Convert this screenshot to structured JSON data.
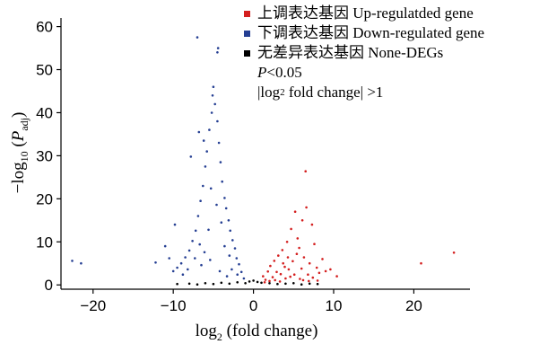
{
  "chart_data": {
    "type": "scatter",
    "title": "",
    "xlabel": {
      "base": "log",
      "sub": "2",
      "rest": " (fold change)"
    },
    "ylabel": {
      "pre": "−log",
      "sub": "10",
      "mid": " (",
      "italic": "P",
      "sub2": "adj",
      "post": ")"
    },
    "xlim": [
      -24,
      27
    ],
    "ylim": [
      -1,
      62
    ],
    "xticks": [
      -20,
      -10,
      0,
      10,
      20
    ],
    "yticks": [
      0,
      10,
      20,
      30,
      40,
      50,
      60
    ],
    "grid": false,
    "legend_position": "top-right",
    "series": [
      {
        "name": "上调表达基因 Up-regulatded gene",
        "color": "#d41f1f",
        "points": [
          [
            1.2,
            2.0
          ],
          [
            1.5,
            1.2
          ],
          [
            1.8,
            3.1
          ],
          [
            2.1,
            4.4
          ],
          [
            2.4,
            1.8
          ],
          [
            2.6,
            5.6
          ],
          [
            2.9,
            3.0
          ],
          [
            3.1,
            6.8
          ],
          [
            3.4,
            2.5
          ],
          [
            3.6,
            8.1
          ],
          [
            3.9,
            4.2
          ],
          [
            4.2,
            10.0
          ],
          [
            4.4,
            3.6
          ],
          [
            4.7,
            13.0
          ],
          [
            4.9,
            5.5
          ],
          [
            5.2,
            17.0
          ],
          [
            5.4,
            7.2
          ],
          [
            5.7,
            8.6
          ],
          [
            6.0,
            3.8
          ],
          [
            6.3,
            6.4
          ],
          [
            6.5,
            26.4
          ],
          [
            6.8,
            2.4
          ],
          [
            7.0,
            5.0
          ],
          [
            7.3,
            14.0
          ],
          [
            7.6,
            9.5
          ],
          [
            7.9,
            4.0
          ],
          [
            8.2,
            2.8
          ],
          [
            8.6,
            6.0
          ],
          [
            9.0,
            3.2
          ],
          [
            9.6,
            3.6
          ],
          [
            10.4,
            2.0
          ],
          [
            20.9,
            5.0
          ],
          [
            25.0,
            7.5
          ],
          [
            1.4,
            0.6
          ],
          [
            2.0,
            0.9
          ],
          [
            2.7,
            1.1
          ],
          [
            3.3,
            0.8
          ],
          [
            4.0,
            1.5
          ],
          [
            4.6,
            1.9
          ],
          [
            5.1,
            2.4
          ],
          [
            5.8,
            1.4
          ],
          [
            6.2,
            1.1
          ],
          [
            6.9,
            0.9
          ],
          [
            7.4,
            1.7
          ],
          [
            8.0,
            1.0
          ],
          [
            3.7,
            5.0
          ],
          [
            4.3,
            6.4
          ],
          [
            5.5,
            10.8
          ],
          [
            6.1,
            15.0
          ],
          [
            6.6,
            18.0
          ]
        ]
      },
      {
        "name": "下调表达基因 Down-regulated gene",
        "color": "#253f93",
        "points": [
          [
            -1.2,
            1.5
          ],
          [
            -1.5,
            3.0
          ],
          [
            -1.8,
            4.8
          ],
          [
            -2.1,
            6.2
          ],
          [
            -2.3,
            8.5
          ],
          [
            -2.6,
            10.4
          ],
          [
            -2.9,
            12.6
          ],
          [
            -3.1,
            15.0
          ],
          [
            -3.4,
            17.8
          ],
          [
            -3.6,
            20.2
          ],
          [
            -3.9,
            24.0
          ],
          [
            -4.1,
            28.5
          ],
          [
            -4.3,
            33.0
          ],
          [
            -4.5,
            38.0
          ],
          [
            -4.8,
            42.0
          ],
          [
            -5.0,
            46.0
          ],
          [
            -4.4,
            55.0
          ],
          [
            -4.5,
            54.0
          ],
          [
            -5.2,
            40.0
          ],
          [
            -5.5,
            36.0
          ],
          [
            -5.8,
            31.0
          ],
          [
            -6.0,
            27.5
          ],
          [
            -6.3,
            23.0
          ],
          [
            -6.6,
            19.5
          ],
          [
            -6.9,
            16.0
          ],
          [
            -7.2,
            12.6
          ],
          [
            -7.6,
            10.2
          ],
          [
            -8.0,
            8.0
          ],
          [
            -8.5,
            6.4
          ],
          [
            -9.0,
            5.0
          ],
          [
            -9.5,
            4.0
          ],
          [
            -10.0,
            3.2
          ],
          [
            -7.0,
            57.5
          ],
          [
            -5.1,
            44.0
          ],
          [
            -6.8,
            35.5
          ],
          [
            -7.8,
            29.8
          ],
          [
            -6.2,
            33.5
          ],
          [
            -9.8,
            14.0
          ],
          [
            -10.5,
            6.2
          ],
          [
            -11.0,
            9.0
          ],
          [
            -22.6,
            5.6
          ],
          [
            -21.5,
            5.0
          ],
          [
            -12.2,
            5.2
          ],
          [
            -3.0,
            6.8
          ],
          [
            -3.6,
            9.0
          ],
          [
            -4.0,
            14.5
          ],
          [
            -4.6,
            18.6
          ],
          [
            -5.3,
            22.4
          ],
          [
            -5.6,
            12.8
          ],
          [
            -6.1,
            7.6
          ],
          [
            -6.5,
            4.6
          ],
          [
            -2.0,
            2.4
          ],
          [
            -2.7,
            3.6
          ],
          [
            -3.3,
            2.0
          ],
          [
            -4.2,
            3.2
          ],
          [
            -5.4,
            5.8
          ],
          [
            -6.7,
            9.4
          ],
          [
            -7.3,
            6.2
          ],
          [
            -8.2,
            3.6
          ],
          [
            -8.8,
            2.4
          ]
        ]
      },
      {
        "name": "无差异表达基因 None-DEGs",
        "color": "#000000",
        "points": [
          [
            -9.5,
            0.2
          ],
          [
            -8.0,
            0.3
          ],
          [
            -7.0,
            0.1
          ],
          [
            -6.0,
            0.4
          ],
          [
            -5.0,
            0.2
          ],
          [
            -4.0,
            0.5
          ],
          [
            -3.0,
            0.3
          ],
          [
            -2.0,
            0.6
          ],
          [
            -1.0,
            0.4
          ],
          [
            -0.5,
            0.8
          ],
          [
            0.0,
            1.0
          ],
          [
            0.5,
            0.7
          ],
          [
            1.0,
            0.5
          ],
          [
            2.0,
            0.4
          ],
          [
            3.0,
            0.2
          ],
          [
            4.0,
            0.3
          ],
          [
            5.0,
            0.4
          ],
          [
            6.0,
            0.1
          ],
          [
            7.0,
            0.3
          ],
          [
            8.0,
            0.2
          ]
        ]
      }
    ]
  },
  "legend_notes": {
    "p": {
      "italic": "P",
      "rest": "<0.05"
    },
    "fc": {
      "pre": "|log",
      "sub": "2",
      "rest": " fold change| >1"
    }
  }
}
